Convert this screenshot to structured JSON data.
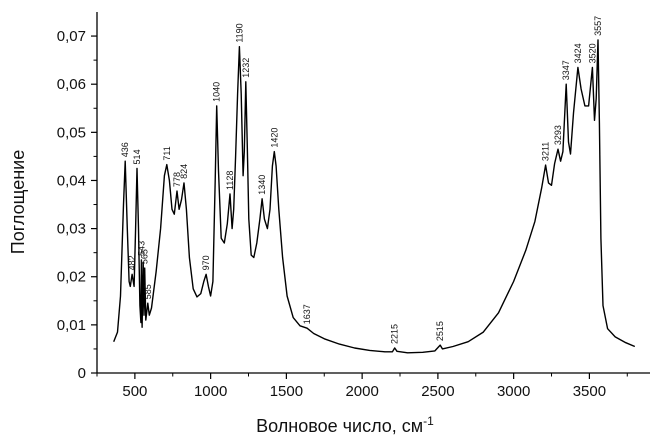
{
  "chart_data": {
    "type": "line",
    "title": "",
    "xlabel": "Волновое число, см",
    "xlabel_superscript": "-1",
    "ylabel": "Поглощение",
    "xlim": [
      250,
      3900
    ],
    "ylim": [
      0,
      0.075
    ],
    "x_ticks": [
      500,
      1000,
      1500,
      2000,
      2500,
      3000,
      3500
    ],
    "y_ticks": [
      {
        "value": 0,
        "label": "0"
      },
      {
        "value": 0.01,
        "label": "0,01"
      },
      {
        "value": 0.02,
        "label": "0,02"
      },
      {
        "value": 0.03,
        "label": "0,03"
      },
      {
        "value": 0.04,
        "label": "0,04"
      },
      {
        "value": 0.05,
        "label": "0,05"
      },
      {
        "value": 0.06,
        "label": "0,06"
      },
      {
        "value": 0.07,
        "label": "0,07"
      }
    ],
    "grid": false,
    "line_color": "#000000",
    "series": [
      {
        "points": [
          [
            360,
            0.0065
          ],
          [
            385,
            0.0085
          ],
          [
            405,
            0.016
          ],
          [
            425,
            0.035
          ],
          [
            436,
            0.044
          ],
          [
            450,
            0.03
          ],
          [
            462,
            0.019
          ],
          [
            470,
            0.018
          ],
          [
            482,
            0.0205
          ],
          [
            495,
            0.018
          ],
          [
            505,
            0.03
          ],
          [
            514,
            0.0425
          ],
          [
            524,
            0.03
          ],
          [
            533,
            0.014
          ],
          [
            540,
            0.0105
          ],
          [
            543,
            0.0235
          ],
          [
            548,
            0.0095
          ],
          [
            555,
            0.023
          ],
          [
            560,
            0.012
          ],
          [
            565,
            0.0218
          ],
          [
            572,
            0.011
          ],
          [
            585,
            0.0145
          ],
          [
            595,
            0.012
          ],
          [
            610,
            0.0135
          ],
          [
            640,
            0.021
          ],
          [
            670,
            0.03
          ],
          [
            695,
            0.041
          ],
          [
            711,
            0.0433
          ],
          [
            728,
            0.04
          ],
          [
            745,
            0.034
          ],
          [
            760,
            0.033
          ],
          [
            778,
            0.0378
          ],
          [
            792,
            0.034
          ],
          [
            808,
            0.036
          ],
          [
            824,
            0.0395
          ],
          [
            840,
            0.034
          ],
          [
            860,
            0.024
          ],
          [
            885,
            0.0175
          ],
          [
            910,
            0.0158
          ],
          [
            935,
            0.0165
          ],
          [
            955,
            0.019
          ],
          [
            970,
            0.0205
          ],
          [
            985,
            0.018
          ],
          [
            1000,
            0.016
          ],
          [
            1015,
            0.019
          ],
          [
            1030,
            0.04
          ],
          [
            1040,
            0.0555
          ],
          [
            1052,
            0.042
          ],
          [
            1070,
            0.028
          ],
          [
            1090,
            0.027
          ],
          [
            1110,
            0.031
          ],
          [
            1128,
            0.0372
          ],
          [
            1142,
            0.03
          ],
          [
            1152,
            0.034
          ],
          [
            1165,
            0.045
          ],
          [
            1178,
            0.058
          ],
          [
            1190,
            0.0678
          ],
          [
            1202,
            0.058
          ],
          [
            1214,
            0.041
          ],
          [
            1222,
            0.046
          ],
          [
            1232,
            0.0605
          ],
          [
            1242,
            0.047
          ],
          [
            1252,
            0.032
          ],
          [
            1268,
            0.0245
          ],
          [
            1285,
            0.024
          ],
          [
            1305,
            0.027
          ],
          [
            1325,
            0.032
          ],
          [
            1340,
            0.0362
          ],
          [
            1355,
            0.032
          ],
          [
            1375,
            0.03
          ],
          [
            1392,
            0.034
          ],
          [
            1408,
            0.043
          ],
          [
            1420,
            0.046
          ],
          [
            1432,
            0.043
          ],
          [
            1450,
            0.034
          ],
          [
            1475,
            0.024
          ],
          [
            1505,
            0.016
          ],
          [
            1545,
            0.0115
          ],
          [
            1590,
            0.0098
          ],
          [
            1637,
            0.0093
          ],
          [
            1680,
            0.0082
          ],
          [
            1750,
            0.0071
          ],
          [
            1850,
            0.006
          ],
          [
            1950,
            0.0052
          ],
          [
            2050,
            0.0047
          ],
          [
            2150,
            0.0044
          ],
          [
            2200,
            0.0044
          ],
          [
            2215,
            0.0052
          ],
          [
            2230,
            0.0045
          ],
          [
            2300,
            0.0042
          ],
          [
            2400,
            0.0043
          ],
          [
            2480,
            0.0046
          ],
          [
            2515,
            0.0058
          ],
          [
            2530,
            0.005
          ],
          [
            2600,
            0.0055
          ],
          [
            2700,
            0.0065
          ],
          [
            2800,
            0.0085
          ],
          [
            2900,
            0.0125
          ],
          [
            3000,
            0.019
          ],
          [
            3080,
            0.0255
          ],
          [
            3140,
            0.0315
          ],
          [
            3185,
            0.0385
          ],
          [
            3211,
            0.0432
          ],
          [
            3230,
            0.0395
          ],
          [
            3250,
            0.039
          ],
          [
            3270,
            0.0435
          ],
          [
            3293,
            0.0465
          ],
          [
            3310,
            0.044
          ],
          [
            3325,
            0.046
          ],
          [
            3347,
            0.06
          ],
          [
            3362,
            0.048
          ],
          [
            3375,
            0.0455
          ],
          [
            3395,
            0.054
          ],
          [
            3424,
            0.0635
          ],
          [
            3445,
            0.059
          ],
          [
            3470,
            0.0555
          ],
          [
            3495,
            0.0555
          ],
          [
            3520,
            0.0635
          ],
          [
            3534,
            0.0525
          ],
          [
            3545,
            0.057
          ],
          [
            3557,
            0.0692
          ],
          [
            3566,
            0.052
          ],
          [
            3576,
            0.028
          ],
          [
            3590,
            0.014
          ],
          [
            3620,
            0.0092
          ],
          [
            3670,
            0.0075
          ],
          [
            3740,
            0.0063
          ],
          [
            3800,
            0.0055
          ]
        ]
      }
    ],
    "annotations": [
      {
        "label": "436",
        "x": 436,
        "y": 0.044
      },
      {
        "label": "482",
        "x": 482,
        "y": 0.0205
      },
      {
        "label": "514",
        "x": 514,
        "y": 0.0425
      },
      {
        "label": "543",
        "x": 543,
        "y": 0.0235
      },
      {
        "label": "565",
        "x": 565,
        "y": 0.0218
      },
      {
        "label": "585",
        "x": 585,
        "y": 0.0145
      },
      {
        "label": "711",
        "x": 711,
        "y": 0.0433
      },
      {
        "label": "778",
        "x": 778,
        "y": 0.0378
      },
      {
        "label": "824",
        "x": 824,
        "y": 0.0395
      },
      {
        "label": "970",
        "x": 970,
        "y": 0.0205
      },
      {
        "label": "1040",
        "x": 1040,
        "y": 0.0555
      },
      {
        "label": "1128",
        "x": 1128,
        "y": 0.0372
      },
      {
        "label": "1190",
        "x": 1190,
        "y": 0.0678
      },
      {
        "label": "1232",
        "x": 1232,
        "y": 0.0605
      },
      {
        "label": "1340",
        "x": 1340,
        "y": 0.0362
      },
      {
        "label": "1420",
        "x": 1420,
        "y": 0.046
      },
      {
        "label": "1637",
        "x": 1637,
        "y": 0.0093
      },
      {
        "label": "2215",
        "x": 2215,
        "y": 0.0052
      },
      {
        "label": "2515",
        "x": 2515,
        "y": 0.0058
      },
      {
        "label": "3211",
        "x": 3211,
        "y": 0.0432
      },
      {
        "label": "3293",
        "x": 3293,
        "y": 0.0465
      },
      {
        "label": "3347",
        "x": 3347,
        "y": 0.06
      },
      {
        "label": "3424",
        "x": 3424,
        "y": 0.0635
      },
      {
        "label": "3520",
        "x": 3520,
        "y": 0.0635
      },
      {
        "label": "3557",
        "x": 3557,
        "y": 0.0692
      }
    ]
  }
}
